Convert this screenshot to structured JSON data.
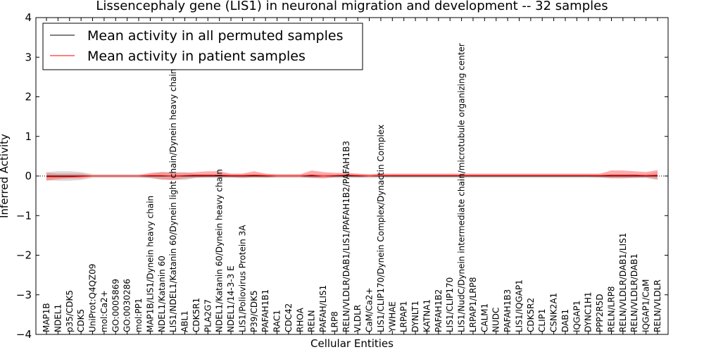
{
  "chart_data": {
    "type": "line",
    "title": "Lissencephaly gene (LIS1) in neuronal migration and development -- 32 samples",
    "xlabel": "Cellular Entities",
    "ylabel": "Inferred Activity",
    "ylim": [
      -4,
      4
    ],
    "yticks": [
      4,
      3,
      2,
      1,
      0,
      -1,
      -2,
      -3,
      -4
    ],
    "ytick_labels": [
      "4",
      "3",
      "2",
      "1",
      "0",
      "−1",
      "−2",
      "−3",
      "−4"
    ],
    "categories": [
      "MAP1B",
      "NDEL1",
      "p35/CDK5",
      "CDK5",
      "UniProt:Q4QZ09",
      "mol:Ca2+",
      "GO:0005869",
      "GO:0030286",
      "mol:PP1",
      "MAP1B/LIS1/Dynein heavy chain",
      "NDEL1/Katanin 60",
      "LIS1/NDEL1/Katanin 60/Dynein light chain/Dynein heavy chain",
      "ABL1",
      "CDK5R1",
      "PLA2G7",
      "NDEL1/Katanin 60/Dynein heavy chain",
      "NDEL1/14-3-3 E",
      "LIS1/Poliovirus Protein 3A",
      "P39/CDK5",
      "PAFAH1B1",
      "RAC1",
      "CDC42",
      "RHOA",
      "RELN",
      "PAFAH/LIS1",
      "LRP8",
      "RELN/VLDLR/DAB1/LIS1/PAFAH1B2/PAFAH1B3",
      "VLDLR",
      "CaM/Ca2+",
      "LIS1/CLIP170/Dynein Complex/Dynactin Complex",
      "YWHAE",
      "LRPAP1",
      "DYNLT1",
      "KATNA1",
      "PAFAH1B2",
      "LIS1/CLIP170",
      "LIS1/NudC/Dynein intermediate chain/microtubule organizing center",
      "LRPAP1/LRP8",
      "CALM1",
      "NUDC",
      "PAFAH1B3",
      "LIS1/IQGAP1",
      "CDK5R2",
      "CLIP1",
      "CSNK2A1",
      "DAB1",
      "IQGAP1",
      "DYNC1H1",
      "PPP2R5D",
      "RELN/LRP8",
      "RELN/VLDLR/DAB1/LIS1",
      "RELN/VLDLR/DAB1",
      "IQGAP1/CaM",
      "RELN/VLDLR"
    ],
    "series": [
      {
        "name": "Mean activity in all permuted samples",
        "color": "#000000",
        "values": [
          0.0,
          0.0,
          0.0,
          0.0,
          0.0,
          0.0,
          0.0,
          0.0,
          0.0,
          0.0,
          0.0,
          0.0,
          0.0,
          0.0,
          0.0,
          0.0,
          0.0,
          0.0,
          0.0,
          0.0,
          0.0,
          0.0,
          0.0,
          0.0,
          0.0,
          0.0,
          0.0,
          0.0,
          0.0,
          0.0,
          0.0,
          0.0,
          0.0,
          0.0,
          0.0,
          0.0,
          0.0,
          0.0,
          0.0,
          0.0,
          0.0,
          0.0,
          0.0,
          0.0,
          0.0,
          0.0,
          0.0,
          0.0,
          0.0,
          0.0,
          0.0,
          0.0,
          0.0,
          0.0
        ],
        "band_low": [
          -0.1,
          -0.12,
          -0.12,
          -0.1,
          -0.05,
          -0.05,
          -0.05,
          -0.05,
          -0.05,
          -0.05,
          -0.1,
          -0.1,
          -0.1,
          -0.05,
          -0.05,
          -0.05,
          -0.05,
          -0.05,
          -0.05,
          -0.05,
          -0.05,
          -0.05,
          -0.05,
          -0.05,
          -0.05,
          -0.05,
          -0.05,
          -0.05,
          -0.05,
          -0.05,
          -0.05,
          -0.05,
          -0.05,
          -0.05,
          -0.05,
          -0.05,
          -0.05,
          -0.05,
          -0.05,
          -0.05,
          -0.05,
          -0.05,
          -0.05,
          -0.05,
          -0.05,
          -0.05,
          -0.05,
          -0.05,
          -0.05,
          -0.05,
          -0.05,
          -0.05,
          -0.05,
          -0.1
        ],
        "band_high": [
          0.1,
          0.12,
          0.12,
          0.1,
          0.05,
          0.05,
          0.05,
          0.05,
          0.05,
          0.05,
          0.1,
          0.1,
          0.1,
          0.05,
          0.05,
          0.05,
          0.05,
          0.05,
          0.05,
          0.05,
          0.05,
          0.05,
          0.05,
          0.05,
          0.05,
          0.05,
          0.05,
          0.05,
          0.05,
          0.05,
          0.05,
          0.05,
          0.05,
          0.05,
          0.05,
          0.05,
          0.05,
          0.05,
          0.05,
          0.05,
          0.05,
          0.05,
          0.05,
          0.05,
          0.05,
          0.05,
          0.05,
          0.05,
          0.05,
          0.05,
          0.05,
          0.05,
          0.05,
          0.1
        ]
      },
      {
        "name": "Mean activity in patient samples",
        "color": "#ff0000",
        "values": [
          -0.02,
          -0.02,
          -0.02,
          -0.01,
          0.0,
          0.0,
          0.0,
          0.0,
          0.0,
          0.01,
          0.01,
          0.0,
          0.01,
          0.02,
          0.02,
          0.02,
          0.01,
          0.01,
          0.02,
          0.01,
          0.0,
          0.0,
          0.0,
          0.02,
          0.0,
          0.01,
          0.02,
          0.01,
          0.0,
          0.01,
          0.01,
          0.01,
          0.01,
          0.01,
          0.01,
          0.01,
          0.01,
          0.01,
          0.01,
          0.01,
          0.01,
          0.01,
          0.01,
          0.01,
          0.01,
          0.01,
          0.01,
          0.01,
          0.01,
          0.02,
          0.02,
          0.02,
          0.01,
          0.02
        ],
        "band_low": [
          -0.12,
          -0.08,
          -0.06,
          -0.06,
          -0.02,
          -0.02,
          -0.02,
          -0.02,
          -0.02,
          -0.05,
          -0.08,
          -0.1,
          -0.06,
          -0.04,
          -0.03,
          -0.03,
          -0.03,
          -0.05,
          -0.03,
          -0.04,
          -0.02,
          -0.02,
          -0.02,
          -0.05,
          -0.06,
          -0.03,
          -0.02,
          -0.03,
          -0.02,
          -0.02,
          -0.02,
          -0.02,
          -0.02,
          -0.02,
          -0.02,
          -0.02,
          -0.02,
          -0.02,
          -0.02,
          -0.02,
          -0.02,
          -0.02,
          -0.02,
          -0.02,
          -0.02,
          -0.02,
          -0.02,
          -0.02,
          -0.03,
          -0.06,
          -0.06,
          -0.05,
          -0.04,
          -0.08
        ],
        "band_high": [
          0.08,
          0.06,
          0.06,
          0.06,
          0.02,
          0.02,
          0.02,
          0.02,
          0.02,
          0.08,
          0.1,
          0.08,
          0.08,
          0.1,
          0.12,
          0.12,
          0.06,
          0.06,
          0.12,
          0.06,
          0.04,
          0.04,
          0.04,
          0.14,
          0.1,
          0.08,
          0.08,
          0.06,
          0.04,
          0.06,
          0.06,
          0.06,
          0.06,
          0.06,
          0.06,
          0.06,
          0.06,
          0.06,
          0.06,
          0.06,
          0.06,
          0.06,
          0.06,
          0.06,
          0.06,
          0.06,
          0.06,
          0.06,
          0.06,
          0.14,
          0.14,
          0.12,
          0.1,
          0.15
        ]
      }
    ],
    "legend": {
      "position": "top-left",
      "entries": [
        "Mean activity in all permuted samples",
        "Mean activity in patient samples"
      ]
    },
    "grid": false
  },
  "colors": {
    "permuted_band": "#bfbfbf",
    "patient_band": "#ff6666",
    "zero_line": "#000000"
  }
}
